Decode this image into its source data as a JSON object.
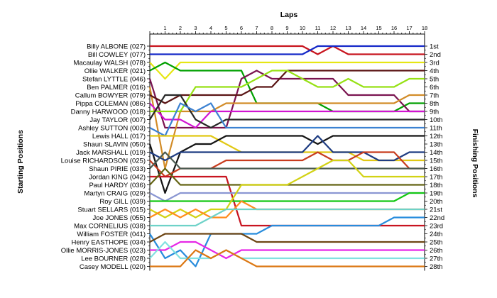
{
  "chart_data": {
    "type": "line",
    "subtype": "bump-chart",
    "title": "Laps",
    "ylabel_left": "Starting Positions",
    "ylabel_right": "Finishing Positions",
    "laps": [
      1,
      2,
      3,
      4,
      5,
      6,
      7,
      8,
      9,
      10,
      11,
      12,
      13,
      14,
      15,
      16,
      17,
      18
    ],
    "finish_labels": [
      "1st",
      "2nd",
      "3rd",
      "4th",
      "5th",
      "6th",
      "7th",
      "8th",
      "9th",
      "10th",
      "11th",
      "12th",
      "13th",
      "14th",
      "15th",
      "16th",
      "17th",
      "18th",
      "19th",
      "20th",
      "21st",
      "22nd",
      "23rd",
      "24th",
      "25th",
      "26th",
      "27th",
      "28th"
    ],
    "grid": false,
    "drivers": [
      {
        "name": "Billy ALBONE (027)",
        "color": "#c8141e",
        "positions": [
          1,
          1,
          1,
          1,
          1,
          1,
          1,
          1,
          1,
          1,
          1,
          2,
          1,
          2,
          2,
          2,
          2,
          2,
          2
        ]
      },
      {
        "name": "Bill COWLEY (077)",
        "color": "#1428c8",
        "positions": [
          2,
          2,
          2,
          2,
          2,
          2,
          2,
          2,
          2,
          2,
          2,
          1,
          1,
          1,
          1,
          1,
          1,
          1,
          1
        ]
      },
      {
        "name": "Macaulay WALSH (078)",
        "color": "#e6e614",
        "positions": [
          3,
          5,
          3,
          3,
          3,
          3,
          3,
          3,
          3,
          3,
          3,
          3,
          3,
          3,
          3,
          3,
          3,
          3,
          3
        ]
      },
      {
        "name": "Ollie WALKER (021)",
        "color": "#00a000",
        "positions": [
          4,
          3,
          4,
          4,
          4,
          4,
          4,
          8,
          8,
          8,
          8,
          8,
          9,
          9,
          9,
          9,
          9,
          8,
          8
        ]
      },
      {
        "name": "Stefan LYTTLE (046)",
        "color": "#7a1450",
        "positions": [
          5,
          11,
          11,
          11,
          11,
          11,
          5,
          4,
          5,
          5,
          5,
          5,
          5,
          7,
          7,
          7,
          7,
          9,
          9
        ]
      },
      {
        "name": "Ben PALMER (016)",
        "color": "#d28c28",
        "positions": [
          6,
          16,
          9,
          9,
          9,
          8,
          8,
          8,
          8,
          8,
          8,
          8,
          8,
          8,
          8,
          8,
          8,
          7,
          7
        ]
      },
      {
        "name": "Callum BOWYER (079)",
        "color": "#5a1414",
        "positions": [
          7,
          8,
          7,
          7,
          7,
          7,
          7,
          6,
          6,
          4,
          4,
          4,
          4,
          4,
          4,
          4,
          4,
          4,
          4
        ]
      },
      {
        "name": "Pippa COLEMAN (086)",
        "color": "#d214d2",
        "positions": [
          8,
          10,
          10,
          11,
          9,
          9,
          9,
          9,
          9,
          9,
          9,
          9,
          9,
          9,
          9,
          9,
          9,
          9,
          9
        ]
      },
      {
        "name": "Danny HARWOOD (018)",
        "color": "#96e114",
        "positions": [
          9,
          9,
          9,
          6,
          6,
          6,
          6,
          5,
          4,
          4,
          5,
          6,
          6,
          5,
          6,
          6,
          6,
          5,
          5
        ]
      },
      {
        "name": "Jay TAYLOR (007)",
        "color": "#282828",
        "positions": [
          10,
          7,
          7,
          10,
          11,
          10,
          10,
          10,
          10,
          10,
          10,
          10,
          10,
          10,
          10,
          10,
          10,
          10,
          10
        ]
      },
      {
        "name": "Ashley SUTTON (003)",
        "color": "#3c82d2",
        "positions": [
          11,
          12,
          8,
          9,
          8,
          11,
          11,
          11,
          11,
          11,
          11,
          11,
          11,
          11,
          11,
          11,
          11,
          11,
          11
        ]
      },
      {
        "name": "Lewis HALL (017)",
        "color": "#e1c814",
        "positions": [
          12,
          12,
          12,
          12,
          12,
          13,
          14,
          14,
          14,
          14,
          14,
          14,
          14,
          14,
          15,
          15,
          15,
          15,
          15
        ]
      },
      {
        "name": "Shaun SLAVIN (050)",
        "color": "#141414",
        "positions": [
          13,
          19,
          14,
          13,
          13,
          12,
          12,
          12,
          12,
          12,
          12,
          13,
          12,
          12,
          12,
          12,
          12,
          12,
          12
        ]
      },
      {
        "name": "Jack MARSHALL (019)",
        "color": "#1e3c82",
        "positions": [
          14,
          15,
          14,
          14,
          14,
          14,
          14,
          14,
          14,
          14,
          14,
          12,
          14,
          14,
          14,
          15,
          15,
          14,
          14
        ]
      },
      {
        "name": "Louise RICHARDSON (025)",
        "color": "#c83c1e",
        "positions": [
          15,
          17,
          16,
          16,
          16,
          15,
          15,
          15,
          15,
          15,
          15,
          14,
          15,
          15,
          14,
          14,
          14,
          16,
          16
        ]
      },
      {
        "name": "Shaun PIRIE (033)",
        "color": "#4a5a50",
        "positions": [
          16,
          14,
          16,
          16,
          16,
          16,
          16,
          16,
          16,
          16,
          16,
          16,
          16,
          16,
          16,
          16,
          16,
          16,
          16
        ]
      },
      {
        "name": "Jordan KING (042)",
        "color": "#c81420",
        "positions": [
          17,
          17,
          17,
          17,
          17,
          17,
          23,
          23,
          23,
          23,
          23,
          23,
          23,
          23,
          23,
          23,
          23,
          23,
          23
        ]
      },
      {
        "name": "Paul HARDY (036)",
        "color": "#646414",
        "positions": [
          18,
          16,
          18,
          18,
          18,
          18,
          18,
          18,
          18,
          18,
          18,
          18,
          18,
          18,
          18,
          18,
          18,
          18,
          18
        ]
      },
      {
        "name": "Martyn CRAIG (029)",
        "color": "#8a96d2",
        "positions": [
          19,
          20,
          19,
          19,
          19,
          19,
          19,
          19,
          19,
          19,
          19,
          19,
          19,
          19,
          19,
          19,
          19,
          19,
          19
        ]
      },
      {
        "name": "Roy GILL (039)",
        "color": "#14c814",
        "positions": [
          20,
          20,
          20,
          20,
          20,
          20,
          20,
          20,
          20,
          20,
          20,
          20,
          20,
          20,
          20,
          20,
          20,
          19,
          19
        ]
      },
      {
        "name": "Stuart SELLARS (015)",
        "color": "#d2d214",
        "positions": [
          21,
          22,
          21,
          22,
          21,
          21,
          18,
          18,
          18,
          18,
          17,
          16,
          15,
          15,
          17,
          17,
          17,
          17,
          17
        ]
      },
      {
        "name": "Joe JONES (055)",
        "color": "#ff8c1e",
        "positions": [
          22,
          21,
          22,
          21,
          22,
          22,
          20,
          21,
          21,
          21,
          21,
          21,
          21,
          21,
          21,
          21,
          21,
          21,
          21
        ]
      },
      {
        "name": "Max CORNELIUS (038)",
        "color": "#6ed2c8",
        "positions": [
          23,
          23,
          23,
          23,
          22,
          21,
          21,
          21,
          21,
          21,
          21,
          21,
          21,
          21,
          21,
          21,
          21,
          21,
          21
        ]
      },
      {
        "name": "William FOSTER (041)",
        "color": "#288cdc",
        "positions": [
          24,
          27,
          26,
          28,
          24,
          24,
          24,
          24,
          23,
          23,
          23,
          23,
          23,
          23,
          23,
          23,
          22,
          22,
          22
        ]
      },
      {
        "name": "Henry EASTHOPE (034)",
        "color": "#6e4614",
        "positions": [
          25,
          24,
          24,
          24,
          24,
          24,
          24,
          25,
          25,
          25,
          25,
          25,
          25,
          25,
          25,
          25,
          25,
          25,
          25
        ]
      },
      {
        "name": "Ollie MORRIS-JONES (023)",
        "color": "#e628e6",
        "positions": [
          26,
          26,
          25,
          25,
          26,
          27,
          26,
          26,
          26,
          26,
          26,
          26,
          26,
          26,
          26,
          26,
          26,
          26,
          26
        ]
      },
      {
        "name": "Lee BOURNER (028)",
        "color": "#82e1e1",
        "positions": [
          27,
          25,
          27,
          27,
          27,
          26,
          27,
          27,
          27,
          27,
          27,
          27,
          27,
          27,
          27,
          27,
          27,
          27,
          27
        ]
      },
      {
        "name": "Casey MODELL (020)",
        "color": "#dc7814",
        "positions": [
          28,
          28,
          28,
          26,
          27,
          26,
          27,
          28,
          28,
          28,
          28,
          28,
          28,
          28,
          28,
          28,
          28,
          28,
          28
        ]
      }
    ]
  }
}
